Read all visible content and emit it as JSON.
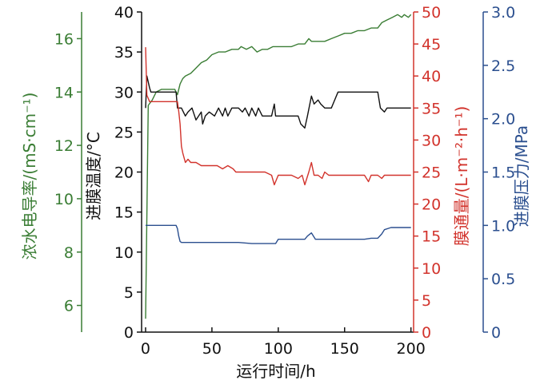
{
  "chart_data": {
    "type": "line",
    "xlabel": "运行时间/h",
    "x_ticks": [
      0,
      50,
      100,
      150,
      200
    ],
    "xlim": [
      -3,
      202
    ],
    "axes": [
      {
        "key": "cond",
        "label": "浓水电导率/(mS·cm⁻¹)",
        "color": "#3a7d34",
        "lim": [
          5,
          17.0
        ],
        "ticks": [
          6,
          8,
          10,
          12,
          14,
          16
        ]
      },
      {
        "key": "temp",
        "label": "进膜温度/°C",
        "color": "#111111",
        "lim": [
          0,
          40
        ],
        "ticks": [
          0,
          5,
          10,
          15,
          20,
          25,
          30,
          35,
          40
        ]
      },
      {
        "key": "flux",
        "label": "膜通量/(L·m⁻²·h⁻¹)",
        "color": "#d2332c",
        "lim": [
          0,
          50
        ],
        "ticks": [
          0,
          5,
          10,
          15,
          20,
          25,
          30,
          35,
          40,
          45,
          50
        ]
      },
      {
        "key": "press",
        "label": "进膜压力/MPa",
        "color": "#2b4f8f",
        "lim": [
          0,
          3.0
        ],
        "ticks": [
          "0",
          "0.5",
          "1.0",
          "1.5",
          "2.0",
          "2.5",
          "3.0"
        ]
      }
    ],
    "series": [
      {
        "axis": "cond",
        "color": "#3a7d34",
        "x": [
          0,
          2,
          5,
          8,
          12,
          17,
          22,
          24,
          26,
          28,
          30,
          34,
          38,
          42,
          46,
          50,
          55,
          60,
          65,
          70,
          72,
          76,
          80,
          84,
          88,
          92,
          96,
          100,
          104,
          110,
          115,
          120,
          123,
          125,
          128,
          130,
          135,
          140,
          145,
          150,
          155,
          160,
          165,
          170,
          175,
          178,
          182,
          186,
          190,
          193,
          195,
          198,
          200
        ],
        "y": [
          5.5,
          13.5,
          13.7,
          14.0,
          14.1,
          14.1,
          14.1,
          13.9,
          14.3,
          14.5,
          14.6,
          14.7,
          14.9,
          15.1,
          15.2,
          15.4,
          15.5,
          15.5,
          15.6,
          15.6,
          15.7,
          15.6,
          15.7,
          15.5,
          15.6,
          15.6,
          15.7,
          15.7,
          15.7,
          15.7,
          15.8,
          15.8,
          16.0,
          15.9,
          15.9,
          15.9,
          15.9,
          16.0,
          16.1,
          16.2,
          16.2,
          16.3,
          16.3,
          16.4,
          16.4,
          16.6,
          16.7,
          16.8,
          16.9,
          16.8,
          16.9,
          16.8,
          16.9
        ]
      },
      {
        "axis": "temp",
        "color": "#111111",
        "x": [
          0,
          1,
          3,
          4,
          6,
          10,
          15,
          20,
          23,
          24,
          25,
          27,
          30,
          32,
          35,
          38,
          40,
          42,
          43,
          45,
          48,
          52,
          55,
          58,
          60,
          62,
          65,
          68,
          70,
          73,
          75,
          78,
          80,
          83,
          85,
          88,
          90,
          95,
          97,
          98,
          100,
          103,
          105,
          110,
          115,
          117,
          120,
          122,
          125,
          127,
          130,
          132,
          135,
          140,
          145,
          150,
          155,
          160,
          165,
          170,
          175,
          177,
          180,
          182,
          185,
          190,
          195,
          200
        ],
        "y": [
          28,
          32,
          30.5,
          30,
          30,
          30,
          30,
          30,
          30,
          28,
          28,
          28,
          27,
          27.5,
          28,
          26.5,
          27,
          27.5,
          26,
          27,
          27.5,
          27,
          28,
          27,
          28,
          27,
          28,
          28,
          28,
          27.5,
          28,
          27,
          28,
          27,
          28,
          27,
          27,
          27,
          28.5,
          27,
          27,
          27,
          27,
          27,
          27,
          26,
          25.5,
          27,
          29.5,
          28.5,
          29,
          28.5,
          28,
          28,
          30,
          30,
          30,
          30,
          30,
          30,
          30,
          28,
          27.5,
          28,
          28,
          28,
          28,
          28
        ]
      },
      {
        "axis": "flux",
        "color": "#d2332c",
        "x": [
          0,
          1,
          3,
          5,
          8,
          12,
          16,
          20,
          23,
          24,
          25,
          26,
          27,
          28,
          30,
          32,
          34,
          38,
          42,
          46,
          50,
          54,
          58,
          62,
          66,
          68,
          70,
          75,
          80,
          85,
          90,
          95,
          97,
          100,
          105,
          110,
          115,
          118,
          120,
          123,
          125,
          127,
          130,
          133,
          135,
          138,
          140,
          145,
          150,
          155,
          160,
          165,
          168,
          170,
          175,
          178,
          180,
          185,
          190,
          195,
          200
        ],
        "y": [
          44.5,
          37,
          36,
          36,
          36,
          36,
          36,
          36,
          36,
          36,
          34.5,
          32.5,
          29,
          28,
          26.5,
          27,
          26.5,
          26.5,
          26,
          26,
          26,
          26,
          25.5,
          26,
          25.5,
          25,
          25,
          25,
          25,
          25,
          25,
          24.5,
          23,
          24.5,
          24.5,
          24.5,
          24,
          24.5,
          23,
          25,
          26.5,
          24.5,
          24.5,
          24,
          25,
          24.5,
          24.5,
          24.5,
          24.5,
          24.5,
          24.5,
          24.5,
          23.5,
          24.5,
          24.5,
          24,
          24.5,
          24.5,
          24.5,
          24.5,
          24.5
        ]
      },
      {
        "axis": "press",
        "color": "#2b4f8f",
        "x": [
          0,
          5,
          10,
          15,
          20,
          23,
          24,
          25,
          26,
          27,
          30,
          40,
          50,
          60,
          70,
          80,
          90,
          95,
          98,
          100,
          110,
          115,
          120,
          122,
          125,
          128,
          135,
          150,
          165,
          170,
          175,
          178,
          180,
          185,
          190,
          200
        ],
        "y": [
          1.0,
          1.0,
          1.0,
          1.0,
          1.0,
          1.0,
          0.97,
          0.9,
          0.85,
          0.84,
          0.84,
          0.84,
          0.84,
          0.84,
          0.84,
          0.83,
          0.83,
          0.83,
          0.83,
          0.87,
          0.87,
          0.87,
          0.87,
          0.9,
          0.93,
          0.87,
          0.87,
          0.87,
          0.87,
          0.88,
          0.88,
          0.92,
          0.96,
          0.98,
          0.98,
          0.98
        ]
      }
    ]
  }
}
